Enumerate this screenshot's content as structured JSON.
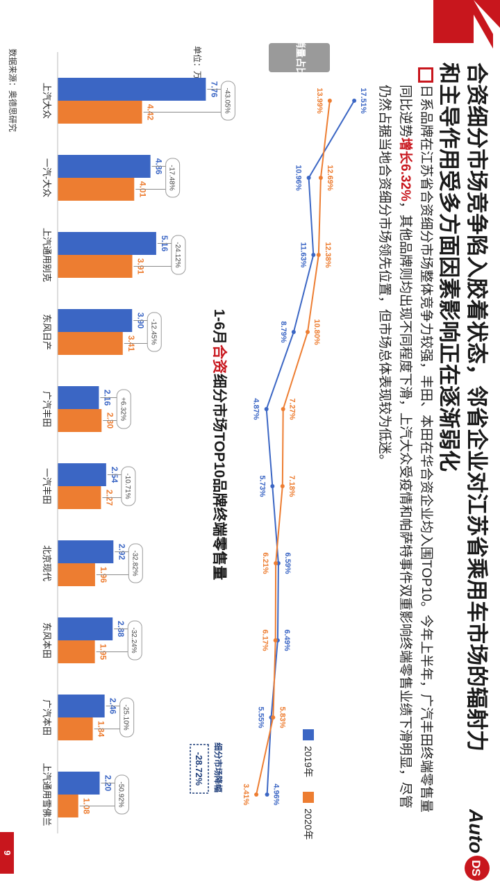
{
  "page": {
    "title_line1": "合资细分市场竞争陷入胶着状态，邻省企业对江苏省乘用车市场的辐射力",
    "title_line2": "和主导作用受多方面因素影响正在逐渐弱化",
    "body_part1": "日系品牌在江苏省合资细分市场整体竞争力较强，丰田、本田在华合资企业均入围TOP10。今年上半年，广汽丰田终端零售量同比逆势",
    "body_highlight": "增长6.32%",
    "body_part2": "，其他品牌则均出现不同程度下滑，上汽大众受疫情和帕萨特事件双重影响终端零售业绩下滑明显，尽管仍然占据当地合资细分市场领先位置，但市场总体表现较为低迷。",
    "chart_title_pre": "1-6月",
    "chart_title_hl": "合资",
    "chart_title_post": "细分市场TOP10品牌终端零售量",
    "logo_text_left": "Auto",
    "logo_text_right": "DS",
    "source": "数据来源：奥德思研究",
    "page_number": "9",
    "colors": {
      "accent": "#c8161d",
      "series_2019": "#3b66c4",
      "series_2020": "#ed7d31"
    }
  },
  "chart_data": [
    {
      "type": "bar",
      "unit_label": "单位：万辆",
      "categories": [
        "上汽大众",
        "一汽-大众",
        "上汽通用别克",
        "东风日产",
        "广汽丰田",
        "一汽丰田",
        "北京现代",
        "东风本田",
        "广汽本田",
        "上汽通用雪佛兰"
      ],
      "series": [
        {
          "name": "2019年",
          "values": [
            7.76,
            4.86,
            5.16,
            3.9,
            2.16,
            2.54,
            2.92,
            2.88,
            2.46,
            2.2
          ]
        },
        {
          "name": "2020年",
          "values": [
            4.42,
            4.01,
            3.91,
            3.41,
            2.3,
            2.27,
            1.96,
            1.95,
            1.84,
            1.08
          ]
        }
      ],
      "growth_labels": [
        "-43.05%",
        "-17.48%",
        "-24.12%",
        "-12.45%",
        "+6.32%",
        "-10.71%",
        "-32.82%",
        "-32.24%",
        "-25.10%",
        "-50.92%"
      ],
      "segment_change": {
        "label": "细分市场降幅",
        "value": "-28.72%"
      },
      "legend": [
        "2019年",
        "2020年"
      ],
      "legend_position": "top-right"
    },
    {
      "type": "line",
      "title": "销量占比",
      "categories": [
        "上汽大众",
        "一汽-大众",
        "上汽通用别克",
        "东风日产",
        "广汽丰田",
        "一汽丰田",
        "北京现代",
        "东风本田",
        "广汽本田",
        "上汽通用雪佛兰"
      ],
      "series": [
        {
          "name": "2019年",
          "values": [
            17.51,
            10.96,
            11.63,
            8.79,
            4.87,
            5.73,
            6.59,
            6.49,
            5.55,
            4.96
          ],
          "labels": [
            "17.51%",
            "10.96%",
            "11.63%",
            "8.79%",
            "4.87%",
            "5.73%",
            "6.59%",
            "6.49%",
            "5.55%",
            "4.96%"
          ]
        },
        {
          "name": "2020年",
          "values": [
            13.99,
            12.69,
            12.38,
            10.8,
            7.27,
            7.18,
            6.21,
            6.17,
            5.83,
            3.41
          ],
          "labels": [
            "13.99%",
            "12.69%",
            "12.38%",
            "10.80%",
            "7.27%",
            "7.18%",
            "6.21%",
            "6.17%",
            "5.83%",
            "3.41%"
          ]
        }
      ]
    }
  ]
}
